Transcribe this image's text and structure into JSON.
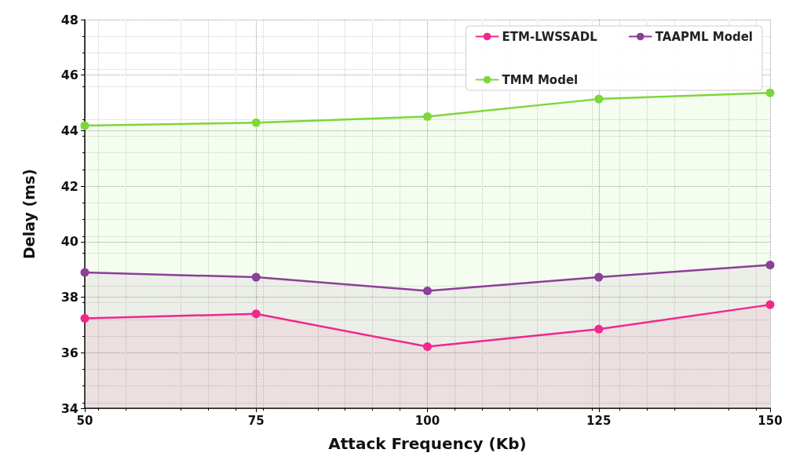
{
  "chart_data": {
    "type": "area",
    "xlabel": "Attack Frequency (Kb)",
    "ylabel": "Delay (ms)",
    "x": [
      50,
      75,
      100,
      125,
      150
    ],
    "series": [
      {
        "name": "ETM-LWSSADL",
        "color": "#f0288c",
        "values": [
          37.24,
          37.4,
          36.22,
          36.85,
          37.73
        ]
      },
      {
        "name": "TAAPML Model",
        "color": "#8b3f96",
        "values": [
          38.89,
          38.72,
          38.23,
          38.72,
          39.16
        ]
      },
      {
        "name": "TMM Model",
        "color": "#7ed63a",
        "values": [
          44.18,
          44.29,
          44.51,
          45.14,
          45.36
        ]
      }
    ],
    "xlim": [
      50,
      150
    ],
    "xticks": [
      50,
      75,
      100,
      125,
      150
    ],
    "ylim": [
      34,
      48
    ],
    "yticks": [
      34,
      36,
      38,
      40,
      42,
      44,
      46,
      48
    ],
    "grid": true,
    "legend": "top right",
    "marker": "circle",
    "line_style": "solid"
  }
}
